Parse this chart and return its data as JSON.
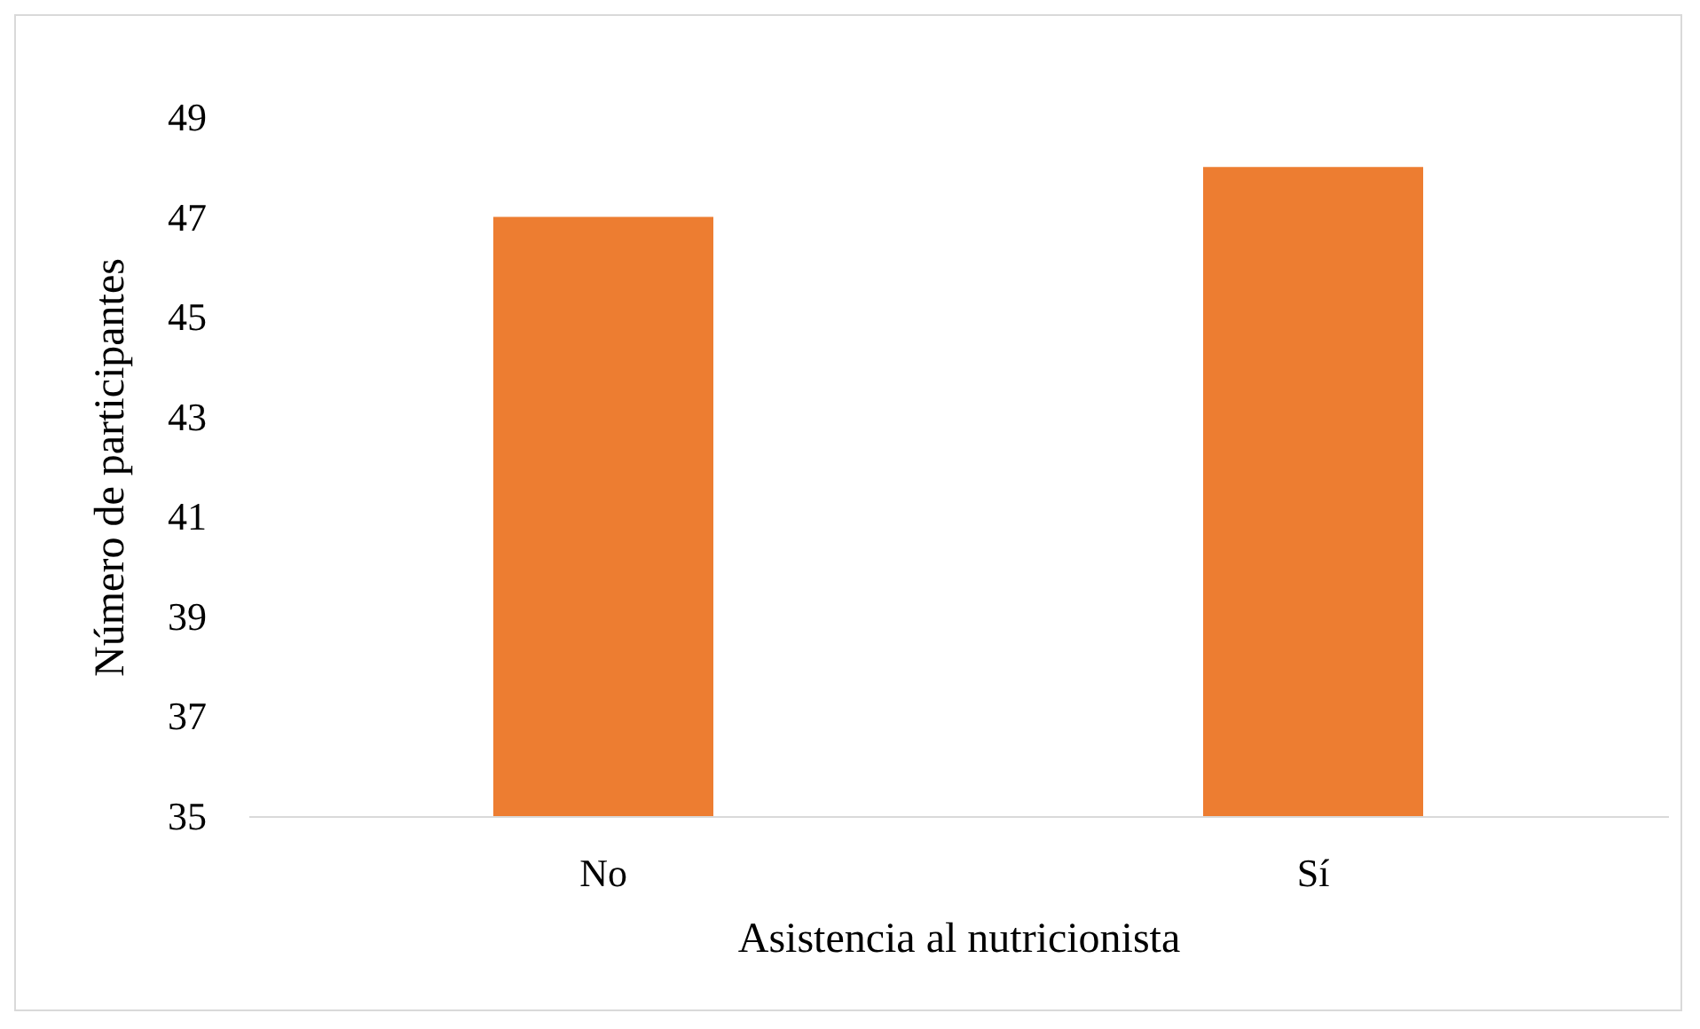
{
  "chart_data": {
    "type": "bar",
    "xlabel": "Asistencia al nutricionista",
    "ylabel": "Número de participantes",
    "categories": [
      "No",
      "Sí"
    ],
    "values": [
      47,
      48
    ],
    "color": "#ed7d31",
    "ylim": [
      35,
      49
    ],
    "yticks": [
      35,
      37,
      39,
      41,
      43,
      45,
      47,
      49
    ],
    "grid": false,
    "legend": false
  }
}
